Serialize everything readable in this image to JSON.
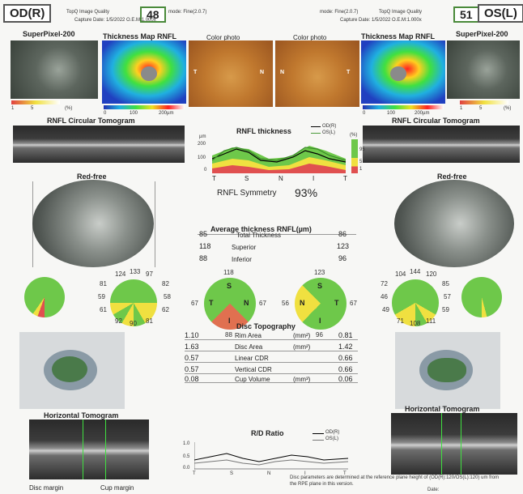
{
  "header": {
    "od_label": "OD(R)",
    "os_label": "OS(L)",
    "od_quality_label": "TopQ Image Quality",
    "od_quality": "48",
    "od_mode": "mode: Fine(2.0.7)",
    "od_capture": "Capture Date: 1/5/2022 O.E.M:1.000x",
    "os_quality_label": "TopQ Image Quality",
    "os_quality": "51",
    "os_mode": "mode: Fine(2.0.7)",
    "os_capture": "Capture Date: 1/5/2022 O.E.M:1.000x"
  },
  "panels": {
    "superpixel": "SuperPixel-200",
    "thickness_map": "Thickness Map RNFL",
    "color_photo": "Color photo",
    "color_t": "T",
    "color_n": "N",
    "sp_scale": [
      "1",
      "5",
      "(%)"
    ],
    "tm_scale": [
      "0",
      "100",
      "200µm"
    ],
    "circular_tomogram": "RNFL Circular Tomogram",
    "red_free": "Red-free",
    "horizontal_tomogram": "Horizontal Tomogram",
    "cup_margin": "Cup margin",
    "disc_margin": "Disc margin"
  },
  "rnfl_chart": {
    "title": "RNFL thickness",
    "legend": [
      "OD(R)",
      "OS(L)"
    ],
    "unit": "µm",
    "y_ticks": [
      "200",
      "100",
      "0"
    ],
    "x_ticks": [
      "T",
      "S",
      "N",
      "I",
      "T"
    ],
    "pct_labels": [
      "(%)",
      "95",
      "5",
      "1"
    ],
    "symmetry_label": "RNFL Symmetry",
    "symmetry_value": "93%"
  },
  "avg_thickness": {
    "title": "Average thickness RNFL(µm)",
    "rows": [
      {
        "od": "85",
        "label": "Total Thickness",
        "os": "86"
      },
      {
        "od": "118",
        "label": "Superior",
        "os": "123"
      },
      {
        "od": "88",
        "label": "Inferior",
        "os": "96"
      }
    ]
  },
  "clock_od": [
    "124",
    "133",
    "97",
    "82",
    "81",
    "59",
    "58",
    "61",
    "62",
    "92",
    "90",
    "81"
  ],
  "clock_os": [
    "104",
    "144",
    "120",
    "72",
    "85",
    "46",
    "57",
    "49",
    "59",
    "71",
    "108",
    "111"
  ],
  "quadrant_od": {
    "top": "118",
    "left": "67",
    "right": "67",
    "bottom": "88",
    "s": "S",
    "t": "T",
    "n": "N",
    "i": "I"
  },
  "quadrant_os": {
    "top": "123",
    "left": "56",
    "right": "67",
    "bottom": "96",
    "s": "S",
    "n": "N",
    "t": "T",
    "i": "I"
  },
  "disc": {
    "title": "Disc Topography",
    "rows": [
      {
        "od": "1.10",
        "label": "Rim Area",
        "unit": "(mm²)",
        "os": "0.81"
      },
      {
        "od": "1.63",
        "label": "Disc Area",
        "unit": "(mm²)",
        "os": "1.42"
      },
      {
        "od": "0.57",
        "label": "Linear CDR",
        "unit": "",
        "os": "0.66"
      },
      {
        "od": "0.57",
        "label": "Vertical CDR",
        "unit": "",
        "os": "0.66"
      },
      {
        "od": "0.08",
        "label": "Cup Volume",
        "unit": "(mm³)",
        "os": "0.06"
      }
    ]
  },
  "rd_chart": {
    "title": "R/D Ratio",
    "legend": [
      "OD(R)",
      "OS(L)"
    ],
    "y_ticks": [
      "1.0",
      "0.5",
      "0.0"
    ],
    "x_ticks": [
      "T",
      "S",
      "N",
      "I",
      "T"
    ]
  },
  "footer": {
    "note": "Disc parameters are determined at the reference plane height of (OD(R):120/OS(L):120) um from the RPE plane in this version.",
    "date_label": "Date:"
  }
}
